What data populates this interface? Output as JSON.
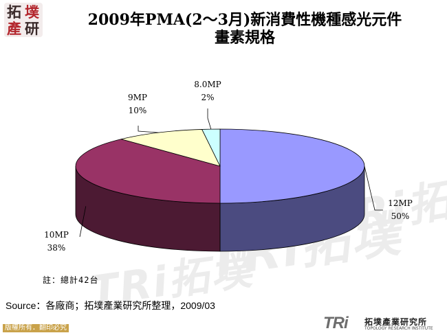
{
  "logo": {
    "glyphs": [
      "拓",
      "墣",
      "產",
      "研"
    ]
  },
  "title": {
    "line1": "2009年PMA(2～3月)新消費性機種感光元件",
    "line2": "畫素規格"
  },
  "watermark": {
    "text": "TRi拓墣"
  },
  "chart_data": {
    "type": "pie",
    "style": "3d",
    "title": "",
    "slices": [
      {
        "name": "12MP",
        "percent_label": "50%",
        "value": 50,
        "color": "#9999ff",
        "side_color": "#4b4b80"
      },
      {
        "name": "10MP",
        "percent_label": "38%",
        "value": 38,
        "color": "#993366",
        "side_color": "#4c1a33"
      },
      {
        "name": "9MP",
        "percent_label": "10%",
        "value": 10,
        "color": "#ffffcc",
        "side_color": "#80805f"
      },
      {
        "name": "8.0MP",
        "percent_label": "2%",
        "value": 2,
        "color": "#ccffff",
        "side_color": "#668080"
      }
    ],
    "legend": "none",
    "grid": false
  },
  "note": "註：總計42台",
  "source": "Source：各廠商；拓墣產業研究所整理，2009/03",
  "footer": {
    "copyright": "版權所有．翻印必究",
    "brand_mark": "TRi",
    "brand_cn": "拓墣產業研究所",
    "brand_en": "TOPOLOGY RESEARCH INSTITUTE"
  }
}
